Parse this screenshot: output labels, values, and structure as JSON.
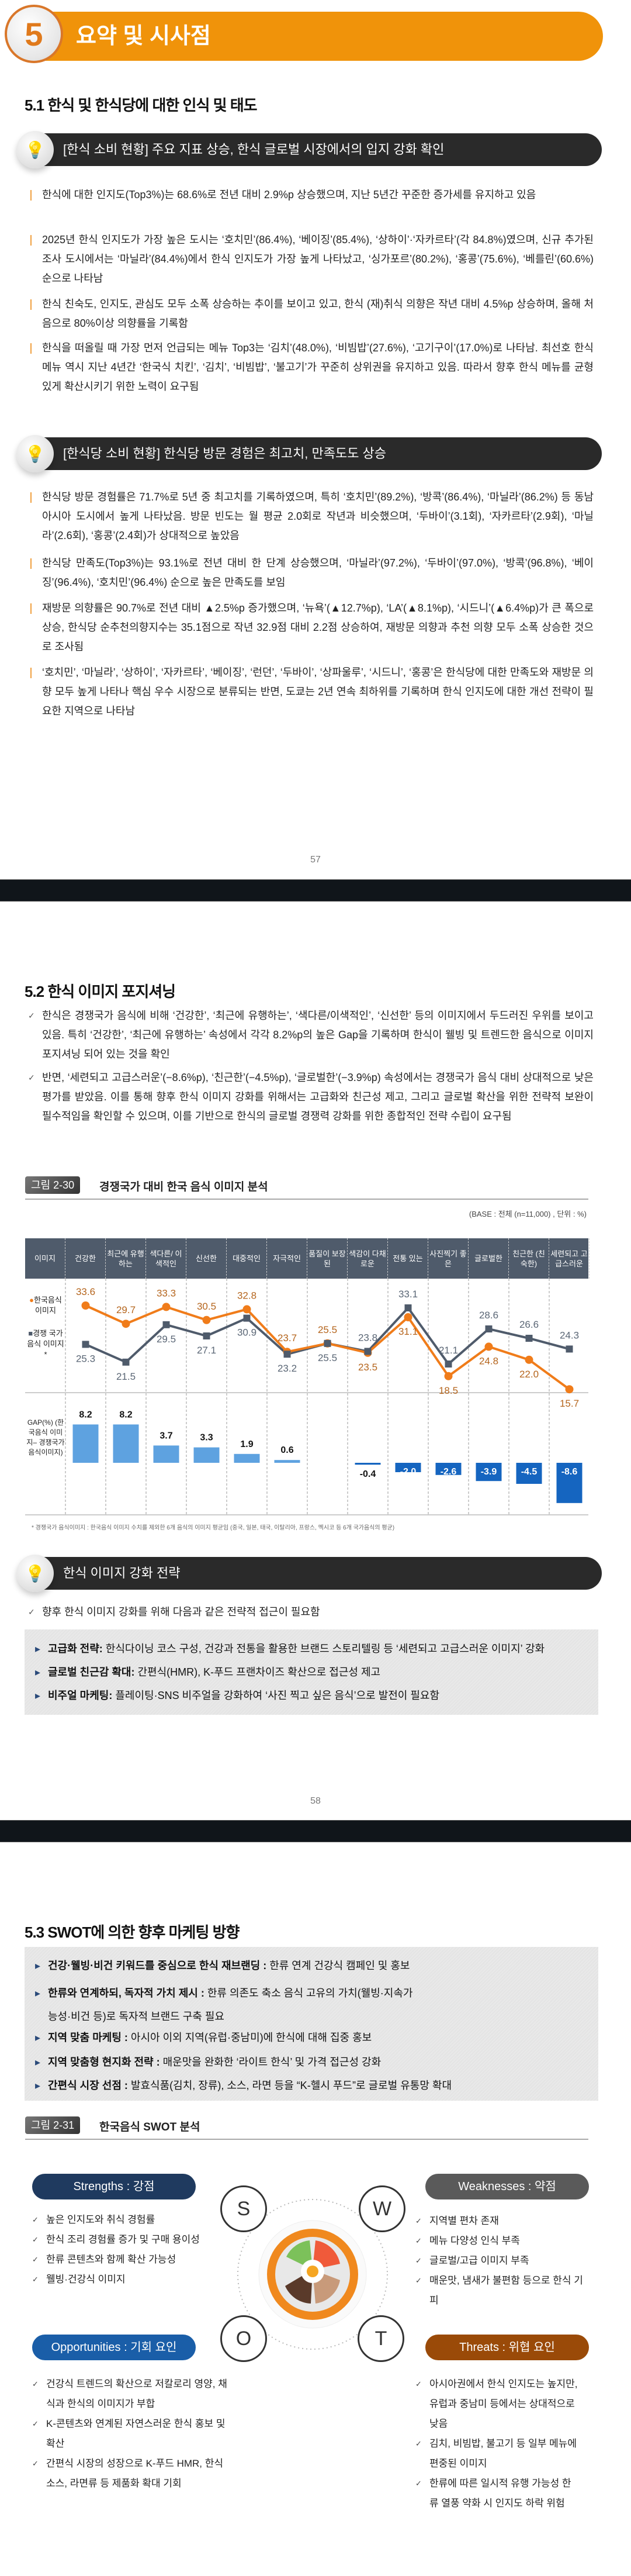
{
  "chapter": {
    "number": "5",
    "title": "요약 및 시사점"
  },
  "s51": {
    "title": "5.1 한식 및 한식당에 대한 인식 및 태도",
    "box1": {
      "tag": "[한식 소비 현황]",
      "text": "주요 지표 상승, 한식 글로벌 시장에서의 입지 강화 확인"
    },
    "paras1": [
      "한식에 대한 인지도(Top3%)는 68.6%로 전년 대비 2.9%p 상승했으며, 지난 5년간 꾸준한 증가세를 유지하고 있음",
      "2025년 한식 인지도가 가장 높은 도시는 ‘호치민’(86.4%), ‘베이징’(85.4%), ‘상하이’·‘자카르타’(각 84.8%)였으며, 신규 추가된 조사 도시에서는 ‘마닐라’(84.4%)에서 한식 인지도가 가장 높게 나타났고, ‘싱가포르’(80.2%), ‘홍콩’(75.6%), ‘베를린’(60.6%) 순으로 나타남",
      "한식 친숙도, 인지도, 관심도 모두 소폭 상승하는 추이를 보이고 있고, 한식 (재)취식 의향은 작년 대비 4.5%p 상승하며, 올해 처음으로 80%이상 의향률을 기록함",
      "한식을 떠올릴 때 가장 먼저 언급되는 메뉴 Top3는 ‘김치’(48.0%), ‘비빔밥’(27.6%), ‘고기구이’(17.0%)로 나타남. 최선호 한식 메뉴 역시 지난 4년간 ‘한국식 치킨’, ‘김치’, ‘비빔밥’, ‘불고기’가 꾸준히 상위권을 유지하고 있음. 따라서 향후 한식 메뉴를 균형 있게 확산시키기 위한 노력이 요구됨"
    ],
    "box2": {
      "tag": "[한식당 소비 현황]",
      "text": "한식당 방문 경험은 최고치, 만족도도 상승"
    },
    "paras2": [
      "한식당 방문 경험률은 71.7%로 5년 중 최고치를 기록하였으며, 특히 ‘호치민’(89.2%), ‘방콕’(86.4%), ‘마닐라’(86.2%) 등 동남아시아 도시에서 높게 나타났음. 방문 빈도는 월 평균 2.0회로 작년과 비슷했으며, ‘두바이’(3.1회), ‘자카르타’(2.9회), ‘마닐라’(2.6회), ‘홍콩’(2.4회)가 상대적으로 높았음",
      "한식당 만족도(Top3%)는 93.1%로 전년 대비 한 단계 상승했으며, ‘마닐라’(97.2%), ‘두바이’(97.0%), ‘방콕’(96.8%), ‘베이징’(96.4%), ‘호치민’(96.4%) 순으로 높은 만족도를 보임",
      "재방문 의향률은 90.7%로 전년 대비 ▲2.5%p 증가했으며, ‘뉴욕’(▲12.7%p), ‘LA’(▲8.1%p), ‘시드니’(▲6.4%p)가 큰 폭으로 상승, 한식당 순추천의향지수는 35.1점으로 작년 32.9점 대비 2.2점 상승하여, 재방문 의향과 추천 의향 모두 소폭 상승한 것으로 조사됨",
      "‘호치민’, ‘마닐라’, ‘상하이’, ‘자카르타’, ‘베이징’, ‘런던’, ‘두바이’, ‘상파울루’, ‘시드니’, ‘홍콩’은 한식당에 대한 만족도와 재방문 의향 모두 높게 나타나 핵심 우수 시장으로 분류되는 반면, 도쿄는 2년 연속 최하위를 기록하며 한식 인지도에 대한 개선 전략이 필요한 지역으로 나타남"
    ]
  },
  "pages": {
    "p57": "57",
    "p58": "58"
  },
  "s52": {
    "title": "5.2 한식 이미지 포지셔닝",
    "paras": [
      "한식은 경쟁국가 음식에 비해 ‘건강한’, ‘최근에 유행하는’, ‘색다른/이색적인’, ‘신선한’ 등의 이미지에서 두드러진 우위를 보이고 있음. 특히 ‘건강한’, ‘최근에 유행하는’ 속성에서 각각 8.2%p의 높은 Gap을 기록하며 한식이 웰빙 및 트렌드한 음식으로 이미지 포지셔닝 되어 있는 것을 확인",
      "반면, ‘세련되고 고급스러운’(−8.6%p), ‘친근한’(−4.5%p), ‘글로벌한’(−3.9%p) 속성에서는 경쟁국가 음식 대비 상대적으로 낮은 평가를 받았음. 이를 통해 향후 한식 이미지 강화를 위해서는 고급화와 친근성 제고, 그리고 글로벌 확산을 위한 전략적 보완이 필수적임을 확인할 수 있으며, 이를 기반으로 한식의 글로벌 경쟁력 강화를 위한 종합적인 전략 수립이 요구됨"
    ]
  },
  "fig30": {
    "label": "그림 2-30",
    "title": "경쟁국가 대비 한국 음식 이미지 분석",
    "base": "(BASE : 전체 (n=11,000) , 단위 : %)",
    "header_first": "이미지",
    "row_gap": "GAP(%) (한국음식 이미지– 경쟁국가 음식이미지)",
    "footnote": "* 경쟁국가 음식이미지 : 한국음식 이미지 수치를 제외한 6개 음식의 이미지 평균임 (중국, 일본, 태국, 이탈리아, 프랑스, 멕시코 등 6개 국가음식의 평균)"
  },
  "chart_data": {
    "type": "line",
    "title": "경쟁국가 대비 한국 음식 이미지 분석",
    "categories": [
      "건강한",
      "최근에 유행하는",
      "색다른/ 이색적인",
      "신선한",
      "대중적인",
      "자극적인",
      "품질이 보장된",
      "색감이 다채로운",
      "전통 있는",
      "사진찍기 좋은",
      "글로벌한",
      "친근한 (친숙한)",
      "세련되고 고급스러운"
    ],
    "series": [
      {
        "name": "한국음식 이미지",
        "color": "#f07c1a",
        "values": [
          33.6,
          29.7,
          33.3,
          30.5,
          32.8,
          23.7,
          25.5,
          23.5,
          31.1,
          18.5,
          24.8,
          22.0,
          15.7
        ]
      },
      {
        "name": "경쟁 국가 음식 이미지*",
        "color": "#4f5b6b",
        "values": [
          25.3,
          21.5,
          29.5,
          27.1,
          30.9,
          23.2,
          25.5,
          23.8,
          33.1,
          21.1,
          28.6,
          26.6,
          24.3
        ]
      }
    ],
    "gap": {
      "name": "GAP(%)",
      "values": [
        8.2,
        8.2,
        3.7,
        3.3,
        1.9,
        0.6,
        0.0,
        -0.4,
        -2.0,
        -2.6,
        -3.9,
        -4.5,
        -8.6
      ],
      "pos_color": "#5ea2e0",
      "neg_color": "#1565c0"
    },
    "unit": "%"
  },
  "strategy": {
    "title": "한식 이미지 강화 전략",
    "intro": "향후 한식 이미지 강화를 위해 다음과 같은 전략적 접근이 필요함",
    "items": [
      {
        "label": "고급화 전략:",
        "text": " 한식다이닝 코스 구성, 건강과 전통을 활용한 브랜드 스토리텔링 등 ‘세련되고 고급스러운 이미지’ 강화"
      },
      {
        "label": "글로벌 친근감 확대:",
        "text": " 간편식(HMR), K-푸드 프랜차이즈 확산으로 접근성 제고"
      },
      {
        "label": "비주얼 마케팅:",
        "text": " 플레이팅·SNS 비주얼을 강화하여 ‘사진 찍고 싶은 음식’으로 발전이 필요함"
      }
    ]
  },
  "s53": {
    "title": "5.3 SWOT에 의한 향후 마케팅 방향",
    "items": [
      {
        "label": "건강·웰빙·비건 키워드를 중심으로 한식 재브랜딩 :",
        "text": " 한류 연계 건강식 캠페인 및 홍보"
      },
      {
        "label": "한류와 연계하되, 독자적 가치 제시 :",
        "text": " 한류 의존도 축소 음식 고유의 가치(웰빙·지속가능성·비건 등)로 독자적 브랜드 구축 필요"
      },
      {
        "label": "지역 맞춤 마케팅 :",
        "text": " 아시아 이외 지역(유럽·중남미)에 한식에 대해 집중 홍보"
      },
      {
        "label": "지역 맞춤형 현지화 전략 :",
        "text": " 매운맛을 완화한 ‘라이트 한식’ 및 가격 접근성 강화"
      },
      {
        "label": "간편식 시장 선점 :",
        "text": " 발효식품(김치, 장류), 소스, 라면 등을 “K-헬시 푸드”로 글로벌 유통망 확대"
      }
    ]
  },
  "fig31": {
    "label": "그림 2-31",
    "title": "한국음식 SWOT 분석"
  },
  "swot": {
    "letters": {
      "s": "S",
      "w": "W",
      "o": "O",
      "t": "T"
    },
    "strengths": {
      "title": "Strengths : 강점",
      "color": "#1f3a5f",
      "items": [
        "높은 인지도와 취식 경험률",
        "한식 조리 경험률 증가 및 구매 용이성",
        "한류 콘텐츠와 함께 확산 가능성",
        "웰빙·건강식 이미지"
      ]
    },
    "weaknesses": {
      "title": "Weaknesses : 약점",
      "color": "#5a5a5a",
      "items": [
        "지역별 편차 존재",
        "메뉴 다양성 인식 부족",
        "글로벌/고급 이미지 부족",
        "매운맛, 냄새가 불편함 등으로 한식 기피"
      ]
    },
    "opportunities": {
      "title": "Opportunities : 기회 요인",
      "color": "#1a5ea8",
      "items": [
        "건강식 트렌드의 확산으로 저칼로리 영양, 채식과 한식의 이미지가 부합",
        "K-콘텐츠와 연계된 자연스러운 한식 홍보 및 확산",
        "간편식 시장의 성장으로 K-푸드 HMR, 한식 소스, 라면류 등 제품화 확대 기회"
      ]
    },
    "threats": {
      "title": "Threats : 위협 요인",
      "color": "#9a4a08",
      "items": [
        "아시아권에서 한식 인지도는 높지만, 유럽과 중남미 등에서는 상대적으로 낮음",
        "김치, 비빔밥, 불고기 등 일부 메뉴에 편중된 이미지",
        "한류에 따른 일시적 유행 가능성 한류 열풍 약화 시 인지도 하락 위험"
      ]
    }
  }
}
